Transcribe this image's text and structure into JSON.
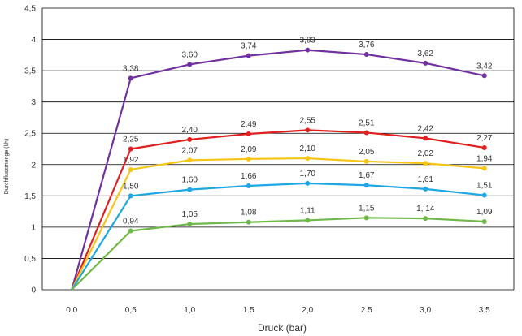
{
  "chart_data": {
    "type": "line",
    "title": "",
    "xlabel": "Druck (bar)",
    "ylabel": "Durchflussmenge (l/h)",
    "categories": [
      "0,0",
      "0,5",
      "1,0",
      "1.5",
      "2,0",
      "2.5",
      "3,0",
      "3.5"
    ],
    "ylim": [
      0,
      4.5
    ],
    "yticks": [
      {
        "value": 0,
        "label": "0"
      },
      {
        "value": 0.5,
        "label": "0,5"
      },
      {
        "value": 1,
        "label": "1"
      },
      {
        "value": 1.5,
        "label": "1,5"
      },
      {
        "value": 2,
        "label": "2"
      },
      {
        "value": 2.5,
        "label": "2,5"
      },
      {
        "value": 3,
        "label": "3"
      },
      {
        "value": 3.5,
        "label": "3,5"
      },
      {
        "value": 4,
        "label": "4"
      },
      {
        "value": 4.5,
        "label": "4,5"
      }
    ],
    "grid": true,
    "legend": "none",
    "series": [
      {
        "color": "#7030a0",
        "values": [
          0,
          3.38,
          3.6,
          3.74,
          3.83,
          3.76,
          3.62,
          3.42
        ],
        "labels": [
          "",
          "3,38",
          "3,60",
          "3,74",
          "3,83",
          "3,76",
          "3,62",
          "3,42"
        ]
      },
      {
        "color": "#e02020",
        "values": [
          0,
          2.25,
          2.4,
          2.49,
          2.55,
          2.51,
          2.42,
          2.27
        ],
        "labels": [
          "",
          "2,25",
          "2,40",
          "2,49",
          "2,55",
          "2,51",
          "2,42",
          "2,27"
        ]
      },
      {
        "color": "#f5c518",
        "values": [
          0,
          1.92,
          2.07,
          2.09,
          2.1,
          2.05,
          2.02,
          1.94
        ],
        "labels": [
          "",
          "1,92",
          "2,07",
          "2,09",
          "2,10",
          "2,05",
          "2,02",
          "1,94"
        ]
      },
      {
        "color": "#1ea7e1",
        "values": [
          0,
          1.5,
          1.6,
          1.66,
          1.7,
          1.67,
          1.61,
          1.51
        ],
        "labels": [
          "",
          "1,50",
          "1,60",
          "1,66",
          "1,70",
          "1,67",
          "1,61",
          "1,51"
        ]
      },
      {
        "color": "#70b84a",
        "values": [
          0,
          0.94,
          1.05,
          1.08,
          1.11,
          1.15,
          1.14,
          1.09
        ],
        "labels": [
          "",
          "0,94",
          "1,05",
          "1,08",
          "1,11",
          "1,15",
          "1, 14",
          "1,09"
        ]
      }
    ]
  }
}
